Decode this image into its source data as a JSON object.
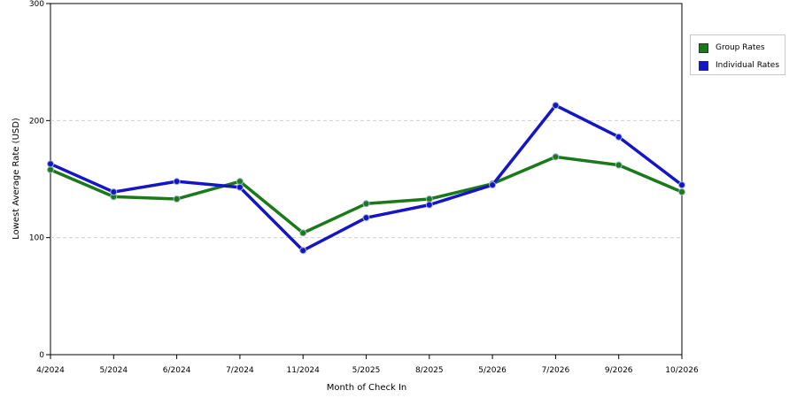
{
  "chart_data": {
    "type": "line",
    "xlabel": "Month of Check In",
    "ylabel": "Lowest Average Rate (USD)",
    "categories": [
      "4/2024",
      "5/2024",
      "6/2024",
      "7/2024",
      "11/2024",
      "5/2025",
      "8/2025",
      "5/2026",
      "7/2026",
      "9/2026",
      "10/2026"
    ],
    "ylim": [
      0,
      300
    ],
    "yticks": [
      "0",
      "100",
      "200",
      "300"
    ],
    "grid": true,
    "legend_position": "right",
    "series": [
      {
        "name": "Group Rates",
        "color": "#1a7a1a",
        "values": [
          158,
          135,
          133,
          148,
          104,
          129,
          133,
          146,
          169,
          162,
          139
        ]
      },
      {
        "name": "Individual Rates",
        "color": "#1515c8",
        "values": [
          163,
          139,
          148,
          143,
          89,
          117,
          128,
          145,
          213,
          186,
          145
        ]
      }
    ]
  }
}
